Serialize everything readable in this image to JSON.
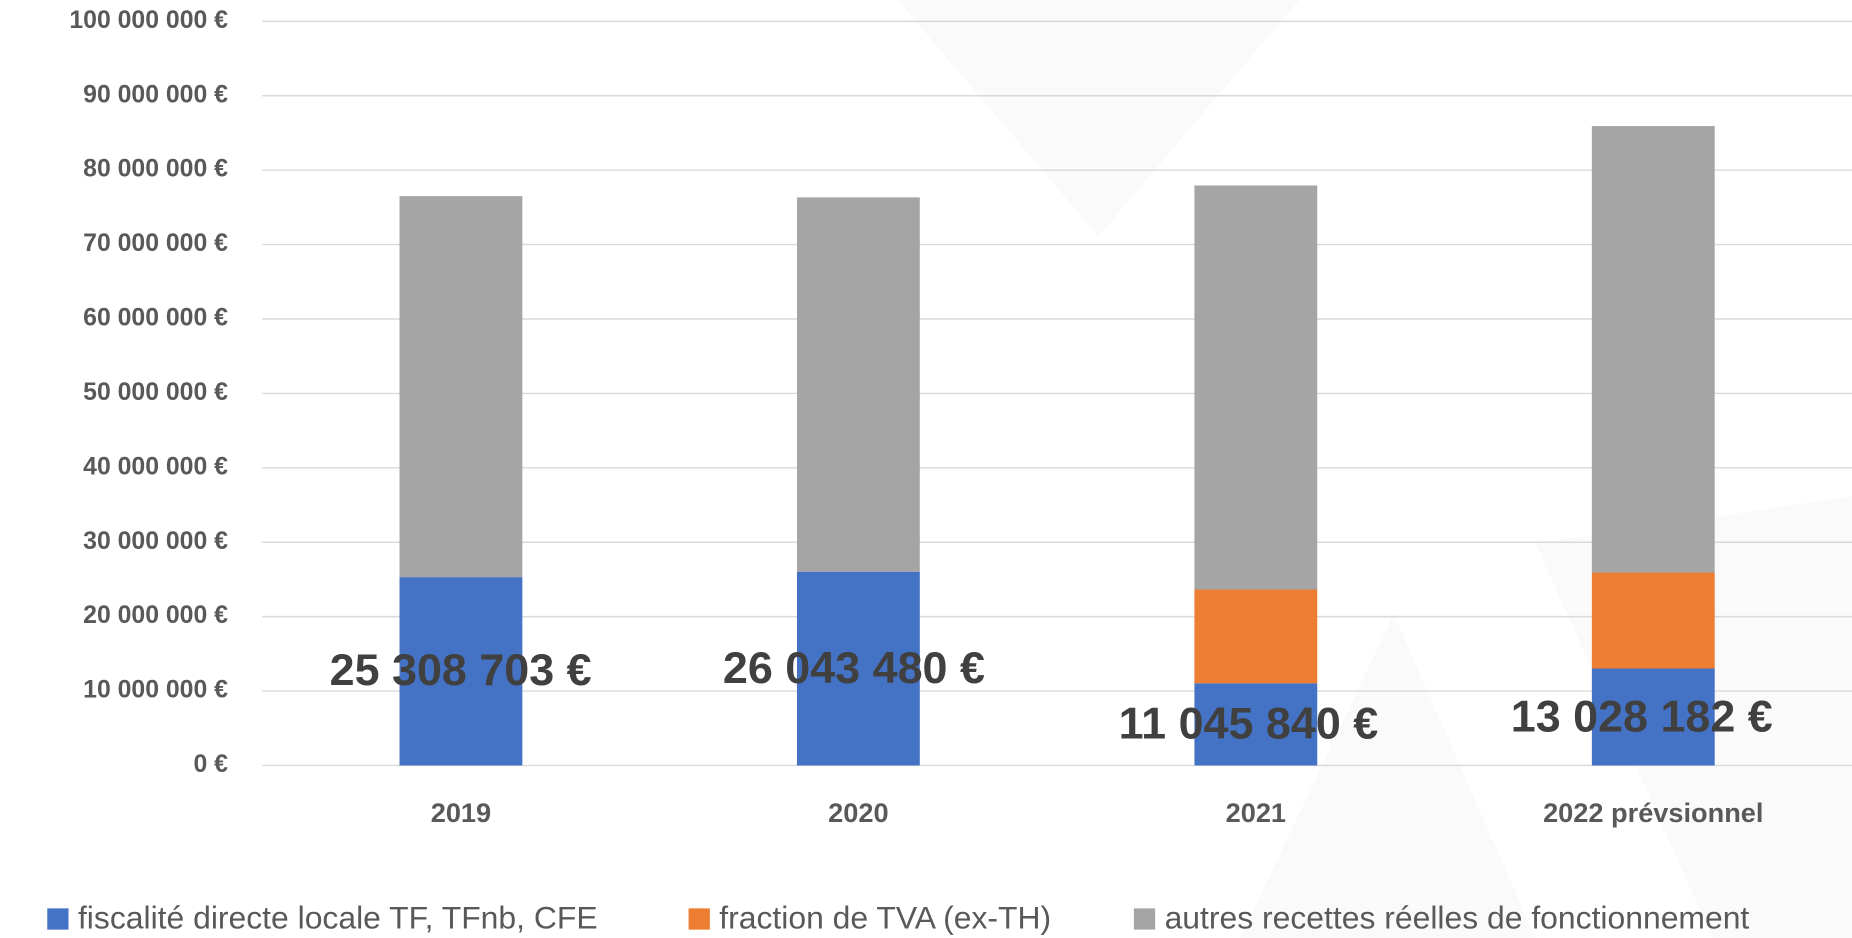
{
  "chart_data": {
    "type": "stacked_bar",
    "categories": [
      "2019",
      "2020",
      "2021",
      "2022 prévsionnel"
    ],
    "series": [
      {
        "name": "fiscalité directe locale TF, TFnb, CFE",
        "color": "#4472c4",
        "values": [
          25308703,
          26043480,
          11045840,
          13028182
        ],
        "value_labels": [
          "25 308 703 €",
          "26 043 480 €",
          "11 045 840 €",
          "13 028 182 €"
        ]
      },
      {
        "name": "fraction de TVA (ex-TH)",
        "color": "#ed7d31",
        "values": [
          0,
          0,
          12600000,
          12900000
        ]
      },
      {
        "name": "autres recettes réelles de fonctionnement",
        "color": "#a5a5a5",
        "values": [
          51200000,
          50300000,
          54300000,
          60000000
        ]
      }
    ],
    "ylim": [
      0,
      100000000
    ],
    "yticks": [
      {
        "value": 0,
        "label": "0 €"
      },
      {
        "value": 10000000,
        "label": "10 000 000 €"
      },
      {
        "value": 20000000,
        "label": "20 000 000 €"
      },
      {
        "value": 30000000,
        "label": "30 000 000 €"
      },
      {
        "value": 40000000,
        "label": "40 000 000 €"
      },
      {
        "value": 50000000,
        "label": "50 000 000 €"
      },
      {
        "value": 60000000,
        "label": "60 000 000 €"
      },
      {
        "value": 70000000,
        "label": "70 000 000 €"
      },
      {
        "value": 80000000,
        "label": "80 000 000 €"
      },
      {
        "value": 90000000,
        "label": "90 000 000 €"
      },
      {
        "value": 100000000,
        "label": "100 000 000 €"
      }
    ],
    "grid": true,
    "legend": "bottom"
  }
}
